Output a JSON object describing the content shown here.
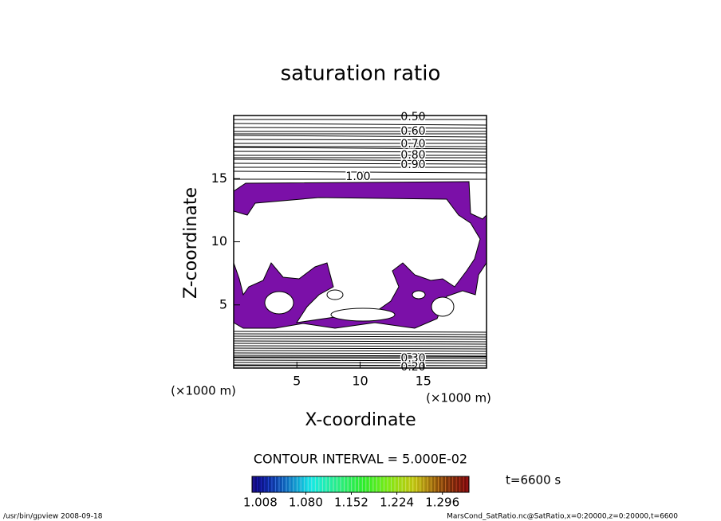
{
  "chart_data": {
    "type": "contour",
    "title": "saturation ratio",
    "x_label": "X-coordinate",
    "y_label": "Z-coordinate",
    "x_unit": "(×1000 m)",
    "y_unit": "(×1000 m)",
    "xlim": [
      0,
      20
    ],
    "ylim": [
      0,
      20
    ],
    "xticks": [
      5,
      10,
      15
    ],
    "yticks": [
      5,
      10,
      15
    ],
    "fill_color": "#7b10a8",
    "upper_levels": [
      {
        "value": 0.5,
        "label": "0.50"
      },
      {
        "value": 0.6,
        "label": "0.60"
      },
      {
        "value": 0.7,
        "label": "0.70"
      },
      {
        "value": 0.8,
        "label": "0.80"
      },
      {
        "value": 0.9,
        "label": "0.90"
      },
      {
        "value": 1,
        "label": "1.00"
      }
    ],
    "lower_levels": [
      {
        "value": 0.3,
        "label": "0.30"
      },
      {
        "value": 0.2,
        "label": "0.20"
      }
    ],
    "contour_interval_label": "CONTOUR INTERVAL = 5.000E-02",
    "clim": [
      0.995,
      1.338
    ],
    "colorbar_ticks": [
      1.008,
      {
        "value": 1.08,
        "label": "1.080"
      },
      1.152,
      1.224,
      1.296
    ],
    "time_label": "t=6600 s",
    "footer_left": "/usr/bin/gpview   2008-09-18",
    "footer_right": "MarsCond_SatRatio.nc@SatRatio,x=0:20000,z=0:20000,t=6600"
  }
}
